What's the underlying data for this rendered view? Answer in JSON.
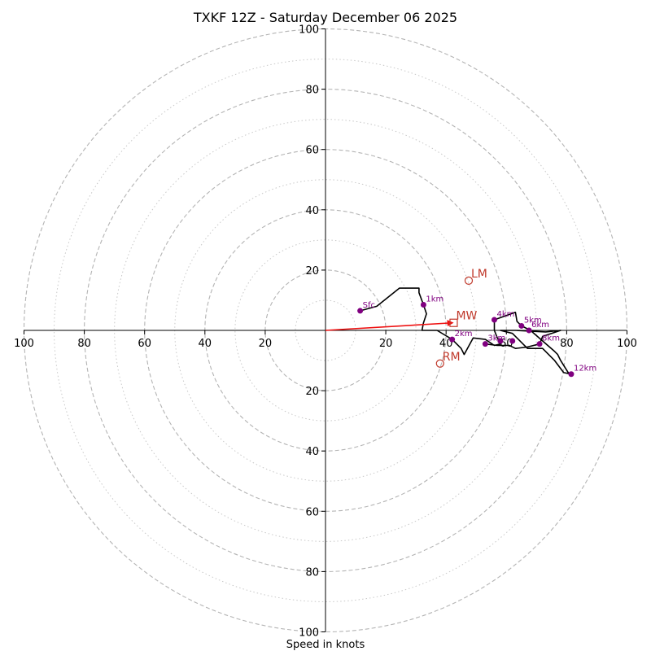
{
  "chart_data": {
    "type": "hodograph",
    "title": "TXKF 12Z - Saturday December 06 2025",
    "xlabel": "Speed in knots",
    "units": "knots",
    "range": [
      -100,
      100
    ],
    "ring_major": [
      20,
      40,
      60,
      80,
      100
    ],
    "ring_minor": [
      10,
      30,
      50,
      70,
      90
    ],
    "x_tick_labels": [
      "100",
      "80",
      "60",
      "40",
      "20",
      "20",
      "40",
      "60",
      "80",
      "100"
    ],
    "x_tick_values": [
      -100,
      -80,
      -60,
      -40,
      -20,
      20,
      40,
      60,
      80,
      100
    ],
    "y_tick_labels": [
      "100",
      "80",
      "60",
      "40",
      "20",
      "20",
      "40",
      "60",
      "80",
      "100"
    ],
    "y_tick_values": [
      100,
      80,
      60,
      40,
      20,
      -20,
      -40,
      -60,
      -80,
      -100
    ],
    "trace_color": "#000000",
    "marker_color": "#800080",
    "motion_color": "#c0392b",
    "shear_arrow_color": "#ee1111",
    "hodograph_trace": [
      [
        11.5,
        6.5
      ],
      [
        17,
        8
      ],
      [
        24.5,
        14
      ],
      [
        31,
        14
      ],
      [
        31,
        12.5
      ],
      [
        32.5,
        8.5
      ],
      [
        33.5,
        5.5
      ],
      [
        32.5,
        2.5
      ],
      [
        32,
        0
      ],
      [
        37,
        0
      ],
      [
        42,
        -3
      ],
      [
        45,
        -6
      ],
      [
        46,
        -8
      ],
      [
        49,
        -2.5
      ],
      [
        53,
        -3
      ],
      [
        56,
        -5
      ],
      [
        58,
        -4.5
      ],
      [
        57,
        -2.5
      ],
      [
        56,
        0
      ],
      [
        56,
        3.5
      ],
      [
        63,
        6
      ],
      [
        63.5,
        3
      ],
      [
        65,
        1.5
      ],
      [
        68,
        0
      ],
      [
        72,
        -3.5
      ],
      [
        76,
        -7
      ],
      [
        77,
        -8
      ],
      [
        78,
        -10
      ],
      [
        80.5,
        -14
      ],
      [
        81.5,
        -14.5
      ],
      [
        79,
        -14
      ],
      [
        76,
        -10
      ],
      [
        72,
        -6
      ],
      [
        67,
        -6
      ],
      [
        62,
        -1
      ],
      [
        58,
        0
      ],
      [
        63,
        0
      ],
      [
        73,
        -0.5
      ],
      [
        78,
        0
      ],
      [
        72,
        -2
      ],
      [
        71,
        -4.5
      ],
      [
        67,
        -5.5
      ],
      [
        63,
        -6
      ],
      [
        61,
        -5
      ],
      [
        57,
        -5
      ],
      [
        53,
        -4.5
      ]
    ],
    "height_markers": [
      {
        "label": "Sfc",
        "u": 11.5,
        "v": 6.5
      },
      {
        "label": "1km",
        "u": 32.5,
        "v": 8.5
      },
      {
        "label": "2km",
        "u": 42,
        "v": -3
      },
      {
        "label": "3km",
        "u": 53,
        "v": -4.5
      },
      {
        "label": "4km",
        "u": 56,
        "v": 3.5
      },
      {
        "label": "5km",
        "u": 65,
        "v": 1.5
      },
      {
        "label": "6km",
        "u": 67.5,
        "v": 0
      },
      {
        "label": "8km",
        "u": 71,
        "v": -4.5
      },
      {
        "label": "12km",
        "u": 81.5,
        "v": -14.5
      },
      {
        "label": "",
        "u": 58,
        "v": -3.5
      },
      {
        "label": "",
        "u": 62,
        "v": -3.5
      }
    ],
    "storm_motion": {
      "mean_wind": {
        "label": "MW",
        "u": 42.5,
        "v": 2.5
      },
      "left_mover": {
        "label": "LM",
        "u": 47.5,
        "v": 16.5
      },
      "right_mover": {
        "label": "RM",
        "u": 38,
        "v": -11
      }
    },
    "shear_vector": {
      "from": [
        0,
        0
      ],
      "to": [
        42,
        2.5
      ]
    }
  }
}
